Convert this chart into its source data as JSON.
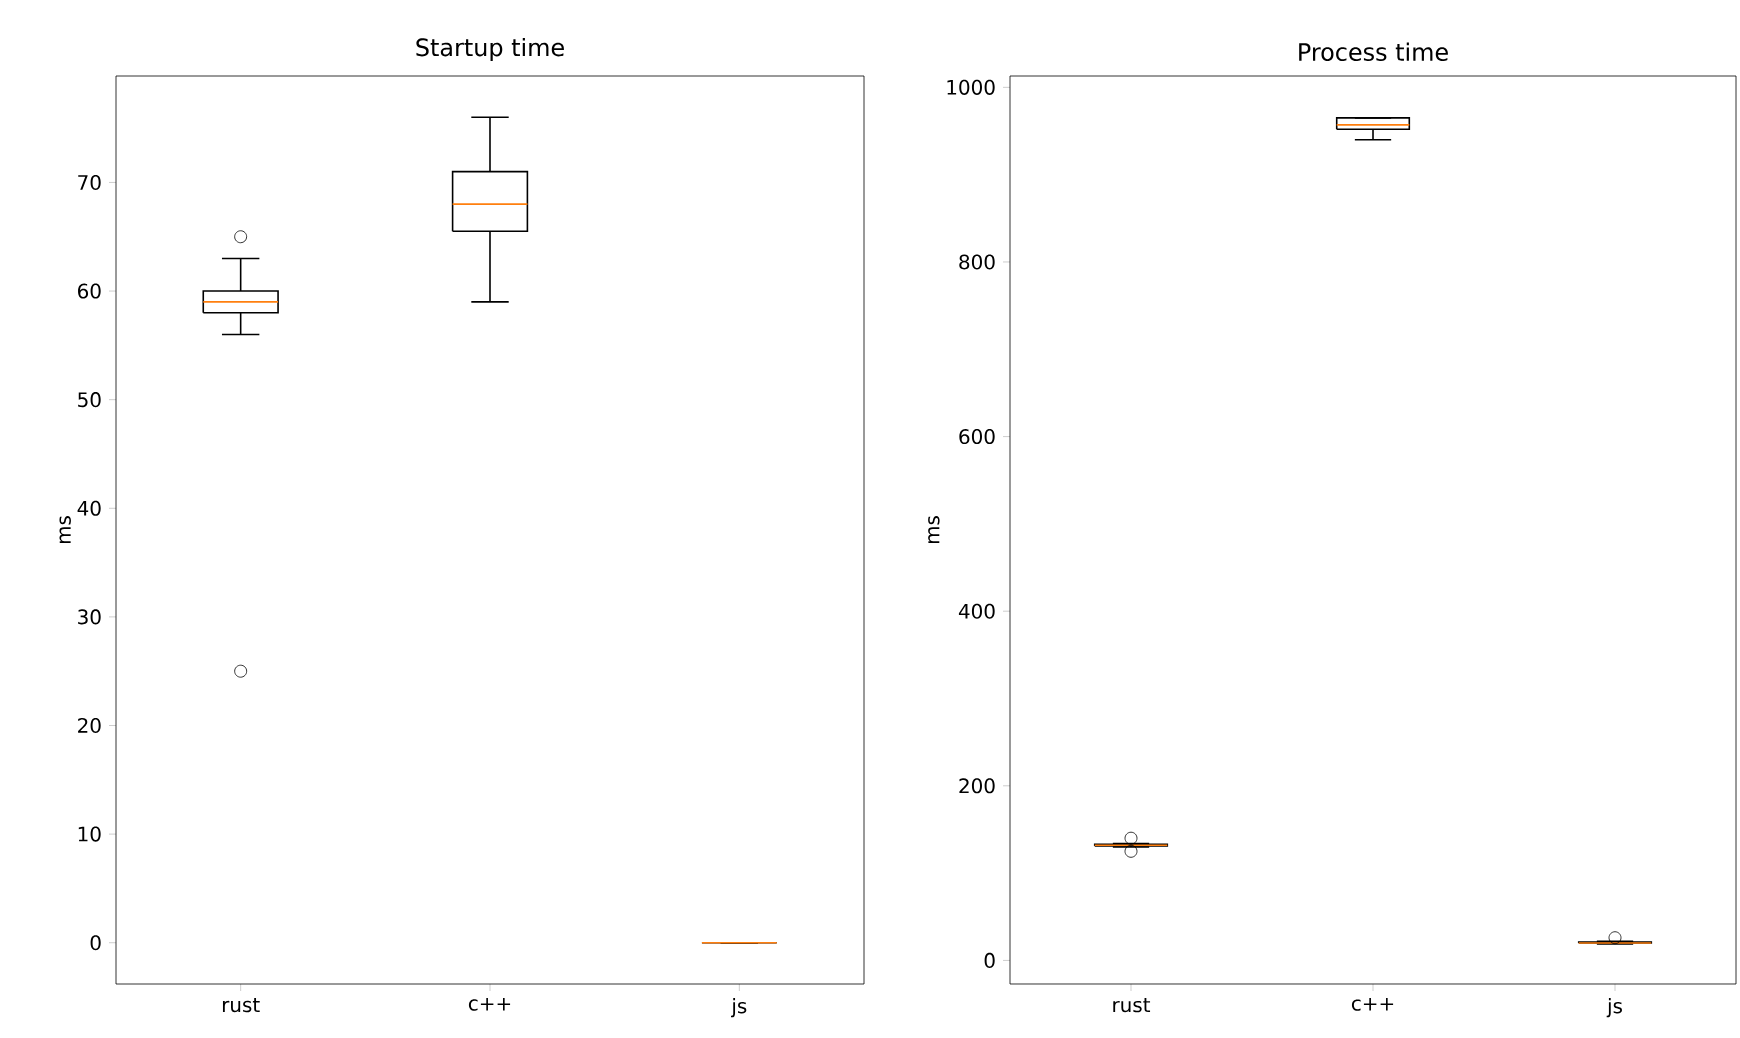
{
  "chart_data": [
    {
      "type": "box",
      "title": "Startup time",
      "ylabel": "ms",
      "categories": [
        "rust",
        "c++",
        "js"
      ],
      "color": "#000000",
      "boxes": [
        {
          "low": 56,
          "q1": 58,
          "median": 59,
          "q3": 60,
          "high": 63,
          "outliers": [
            65,
            25
          ]
        },
        {
          "low": 59,
          "q1": 65.5,
          "median": 68,
          "q3": 71,
          "high": 76
        },
        {
          "low": 0,
          "q1": 0,
          "median": 0,
          "q3": 0,
          "high": 0
        }
      ],
      "ylim": [
        -3.8,
        79.8
      ],
      "yticks": [
        0,
        10,
        20,
        30,
        40,
        50,
        60,
        70
      ]
    },
    {
      "type": "box",
      "title": "Process time",
      "ylabel": "ms",
      "categories": [
        "rust",
        "c++",
        "js"
      ],
      "color": "#000000",
      "boxes": [
        {
          "low": 130,
          "q1": 131,
          "median": 132,
          "q3": 133,
          "high": 134,
          "outliers": [
            125,
            140
          ]
        },
        {
          "low": 940,
          "q1": 952,
          "median": 957,
          "q3": 965,
          "high": 965
        },
        {
          "low": 19,
          "q1": 20,
          "median": 20,
          "q3": 21,
          "high": 22,
          "outliers": [
            26
          ]
        }
      ],
      "ylim": [
        -27,
        1013
      ],
      "yticks": [
        0,
        200,
        400,
        600,
        800,
        1000
      ]
    }
  ]
}
